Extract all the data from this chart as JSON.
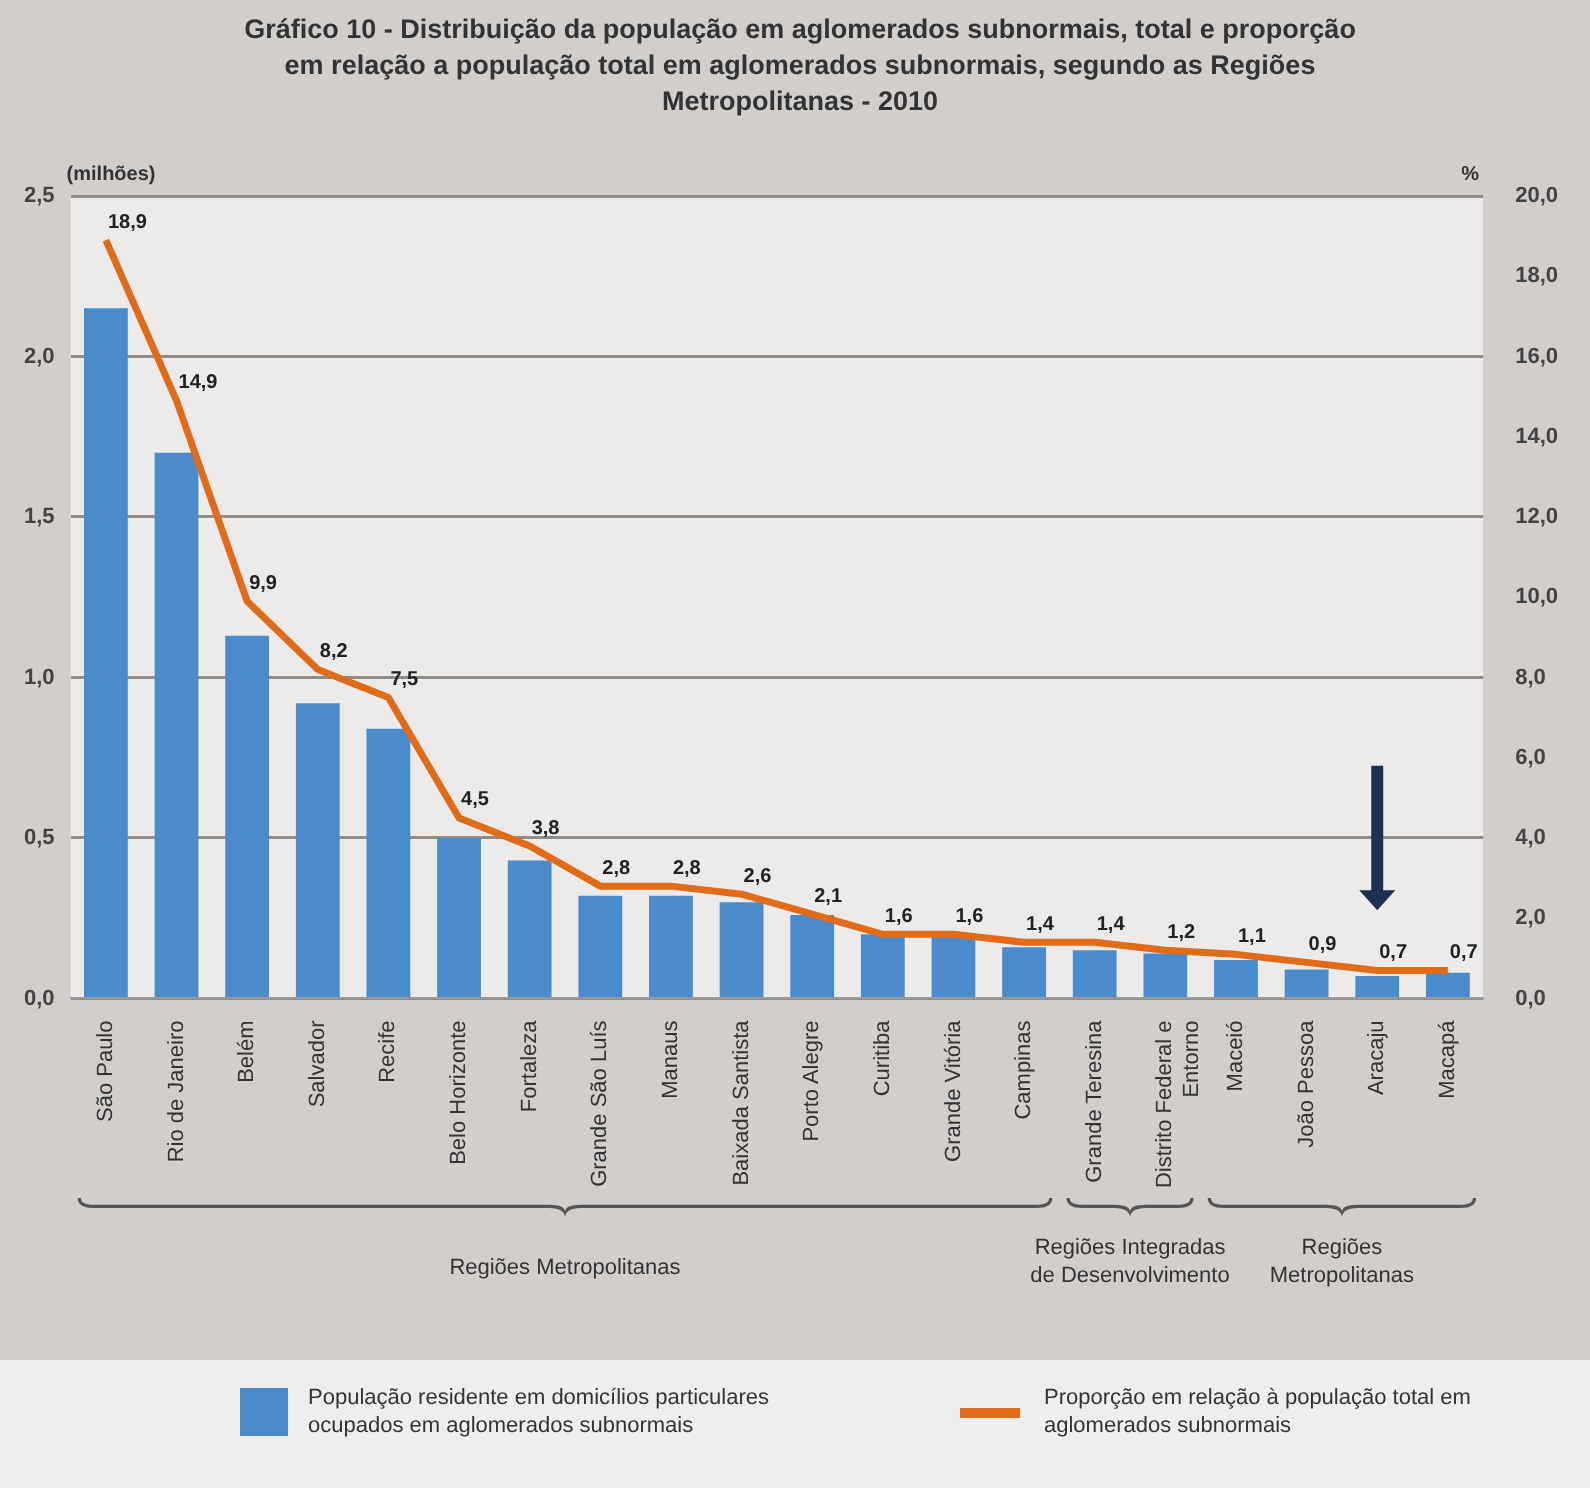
{
  "chart_data": {
    "type": "bar",
    "title": "Gráfico 10 - Distribuição da população em aglomerados subnormais, total e proporção em relação a população total em aglomerados subnormais, segundo as Regiões Metropolitanas - 2010",
    "ylabel": "(milhões)",
    "y2label": "%",
    "categories": [
      "São Paulo",
      "Rio de Janeiro",
      "Belém",
      "Salvador",
      "Recife",
      "Belo Horizonte",
      "Fortaleza",
      "Grande São Luís",
      "Manaus",
      "Baixada Santista",
      "Porto Alegre",
      "Curitiba",
      "Grande Vitória",
      "Campinas",
      "Grande Teresina",
      "Distrito Federal e Entorno",
      "Maceió",
      "João Pessoa",
      "Aracaju",
      "Macapá"
    ],
    "series": [
      {
        "name": "População residente em domicílios particulares ocupados em aglomerados subnormais",
        "color": "#4a8ccb",
        "values": [
          2.15,
          1.7,
          1.13,
          0.92,
          0.84,
          0.5,
          0.43,
          0.32,
          0.32,
          0.3,
          0.26,
          0.2,
          0.2,
          0.16,
          0.15,
          0.14,
          0.12,
          0.09,
          0.07,
          0.08
        ]
      },
      {
        "name": "Proporção em relação à população total em aglomerados subnormais",
        "type": "line",
        "axis": "y2",
        "color": "#e06c1a",
        "marker": "none",
        "values": [
          18.9,
          14.9,
          9.9,
          8.2,
          7.5,
          4.5,
          3.8,
          2.8,
          2.8,
          2.6,
          2.1,
          1.6,
          1.6,
          1.4,
          1.4,
          1.2,
          1.1,
          0.9,
          0.7,
          0.7
        ],
        "value_labels": [
          "18,9",
          "14,9",
          "9,9",
          "8,2",
          "7,5",
          "4,5",
          "3,8",
          "2,8",
          "2,8",
          "2,6",
          "2,1",
          "1,6",
          "1,6",
          "1,4",
          "1,4",
          "1,2",
          "1,1",
          "0,9",
          "0,7",
          "0,7"
        ]
      }
    ],
    "ylim": [
      0,
      2.5
    ],
    "yticks": [
      {
        "value": 0,
        "label": "0,0"
      },
      {
        "value": 0.5,
        "label": "0,5"
      },
      {
        "value": 1,
        "label": "1,0"
      },
      {
        "value": 1.5,
        "label": "1,5"
      },
      {
        "value": 2,
        "label": "2,0"
      },
      {
        "value": 2.5,
        "label": "2,5"
      }
    ],
    "y2lim": [
      0,
      20
    ],
    "y2ticks": [
      {
        "value": 0,
        "label": "0,0"
      },
      {
        "value": 2,
        "label": "2,0"
      },
      {
        "value": 4,
        "label": "4,0"
      },
      {
        "value": 6,
        "label": "6,0"
      },
      {
        "value": 8,
        "label": "8,0"
      },
      {
        "value": 10,
        "label": "10,0"
      },
      {
        "value": 12,
        "label": "12,0"
      },
      {
        "value": 14,
        "label": "14,0"
      },
      {
        "value": 16,
        "label": "16,0"
      },
      {
        "value": 18,
        "label": "18,0"
      },
      {
        "value": 20,
        "label": "20,0"
      }
    ],
    "grid": "y",
    "legend": "bottom",
    "annotations": [
      "Regiões Metropolitanas",
      "Regiões Integradas de Desenvolvimento",
      "Regiões Metropolitanas"
    ]
  }
}
